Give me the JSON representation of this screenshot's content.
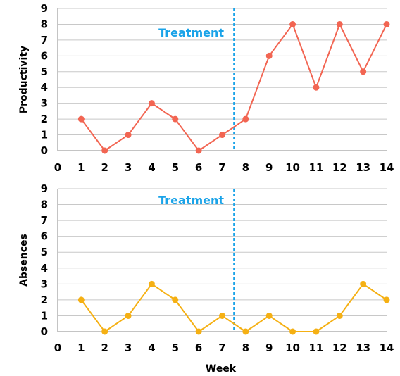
{
  "chart_data": [
    {
      "type": "line",
      "ylabel": "Productivity",
      "xlabel": "",
      "x": [
        1,
        2,
        3,
        4,
        5,
        6,
        7,
        8,
        9,
        10,
        11,
        12,
        13,
        14
      ],
      "xlim": [
        0,
        14
      ],
      "ylim": [
        0,
        9
      ],
      "x_ticks": [
        "0",
        "1",
        "2",
        "3",
        "4",
        "5",
        "6",
        "7",
        "8",
        "9",
        "10",
        "11",
        "12",
        "13",
        "14"
      ],
      "y_ticks": [
        "0",
        "1",
        "2",
        "3",
        "4",
        "5",
        "6",
        "7",
        "8",
        "9"
      ],
      "grid": true,
      "series": [
        {
          "values": [
            2,
            0,
            1,
            3,
            2,
            0,
            1,
            2,
            6,
            8,
            4,
            8,
            5,
            8
          ],
          "color": "#f26552"
        }
      ],
      "phase_line": {
        "x": 7.5,
        "label": "Treatment",
        "color": "#1aa3e8"
      }
    },
    {
      "type": "line",
      "ylabel": "Absences",
      "xlabel": "Week",
      "x": [
        1,
        2,
        3,
        4,
        5,
        6,
        7,
        8,
        9,
        10,
        11,
        12,
        13,
        14
      ],
      "xlim": [
        0,
        14
      ],
      "ylim": [
        0,
        9
      ],
      "x_ticks": [
        "0",
        "1",
        "2",
        "3",
        "4",
        "5",
        "6",
        "7",
        "8",
        "9",
        "10",
        "11",
        "12",
        "13",
        "14"
      ],
      "y_ticks": [
        "0",
        "1",
        "2",
        "3",
        "4",
        "5",
        "6",
        "7",
        "8",
        "9"
      ],
      "grid": true,
      "series": [
        {
          "values": [
            2,
            0,
            1,
            3,
            2,
            0,
            1,
            0,
            1,
            0,
            0,
            1,
            3,
            2
          ],
          "color": "#f5b013"
        }
      ],
      "phase_line": {
        "x": 7.5,
        "label": "Treatment",
        "color": "#1aa3e8"
      }
    }
  ]
}
